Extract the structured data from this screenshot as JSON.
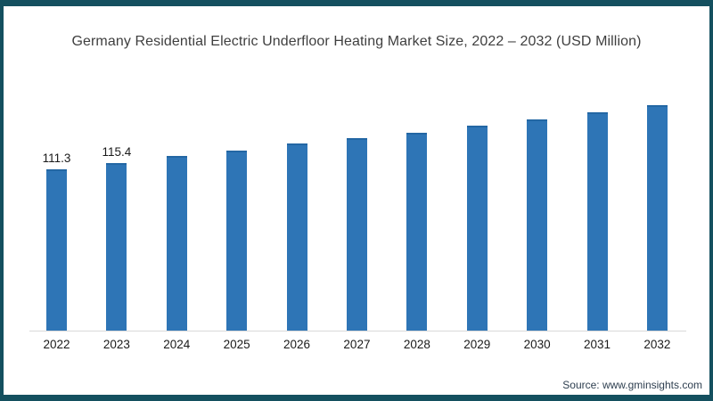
{
  "chart": {
    "title": "Germany Residential Electric Underfloor Heating Market Size, 2022 – 2032 (USD Million)"
  },
  "footer": {
    "source": "Source: www.gminsights.com"
  },
  "colors": {
    "bar": "#2e75b6",
    "bar_top_edge": "#2367a4",
    "axis_line": "#d9d9d9",
    "title_text": "#3f3f3f",
    "label_text": "#1a1a1a",
    "source_text": "#2e3f50",
    "frame_border": "#14505f"
  },
  "chart_data": {
    "type": "bar",
    "title": "Germany Residential Electric Underfloor Heating Market Size, 2022 – 2032 (USD Million)",
    "categories": [
      "2022",
      "2023",
      "2024",
      "2025",
      "2026",
      "2027",
      "2028",
      "2029",
      "2030",
      "2031",
      "2032"
    ],
    "values": [
      111.3,
      115.4,
      120.2,
      124.1,
      128.6,
      132.4,
      136.5,
      141.3,
      145.7,
      150.6,
      155.0
    ],
    "data_labels": [
      "111.3",
      "115.4",
      "",
      "",
      "",
      "",
      "",
      "",
      "",
      "",
      ""
    ],
    "xlabel": "",
    "ylabel": "USD Million",
    "ylim": [
      0,
      170
    ],
    "grid": false,
    "legend": "none",
    "bar_color": "#2e75b6",
    "source": "Source: www.gminsights.com"
  }
}
